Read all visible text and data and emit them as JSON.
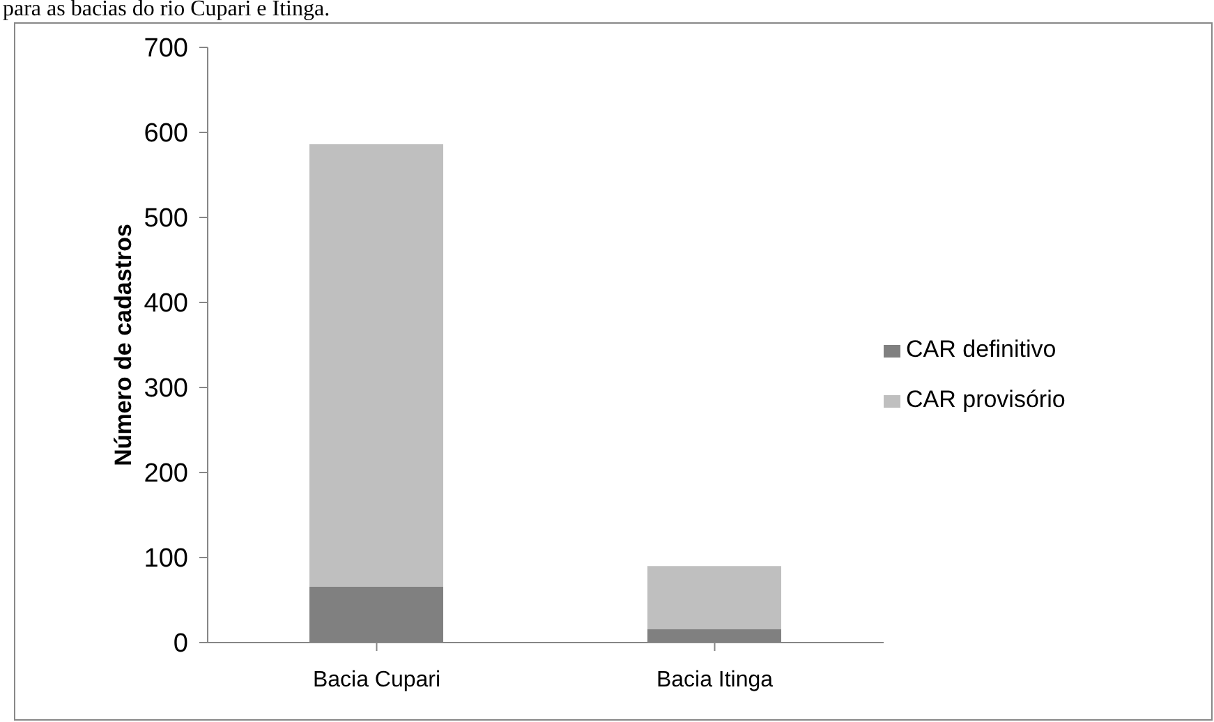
{
  "chart_data": {
    "type": "bar",
    "title": "para as bacias do rio Cupari e Itinga.",
    "ylabel": "Número de cadastros",
    "categories": [
      "Bacia Cupari",
      "Bacia Itinga"
    ],
    "stacked": true,
    "series": [
      {
        "name": "CAR definitivo",
        "color": "#808080",
        "values": [
          66,
          16
        ]
      },
      {
        "name": "CAR provisório",
        "color": "#bfbfbf",
        "values": [
          520,
          74
        ]
      }
    ],
    "ylim": [
      0,
      700
    ],
    "yticks": [
      0,
      100,
      200,
      300,
      400,
      500,
      600,
      700
    ],
    "grid": false,
    "legend": "right"
  }
}
